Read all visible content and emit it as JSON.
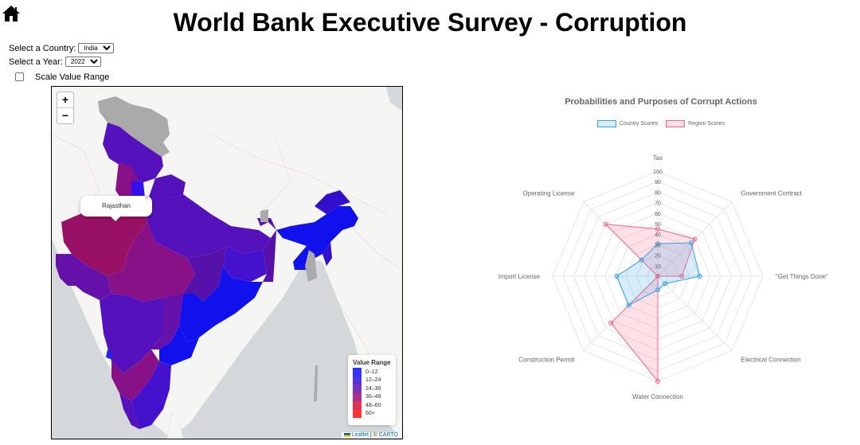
{
  "header": {
    "title": "World Bank Executive Survey - Corruption",
    "home_icon": "home-icon"
  },
  "controls": {
    "country_label": "Select a Country:",
    "country_value": "India",
    "year_label": "Select a Year:",
    "year_value": "2022",
    "scale_label": "Scale Value Range",
    "scale_checked": false
  },
  "map": {
    "zoom_in": "+",
    "zoom_out": "−",
    "popup": {
      "text": "Rajasthan",
      "close": "×"
    },
    "legend": {
      "title": "Value Range",
      "items": [
        {
          "label": "0–12",
          "color": "#3333ff"
        },
        {
          "label": "12–24",
          "color": "#5533dd"
        },
        {
          "label": "24–36",
          "color": "#7733bb"
        },
        {
          "label": "36–48",
          "color": "#aa2f88"
        },
        {
          "label": "48–60",
          "color": "#dd3355"
        },
        {
          "label": "60+",
          "color": "#ff3333"
        }
      ]
    },
    "attribution": {
      "leaflet": "Leaflet",
      "sep": " | © ",
      "carto": "CARTO"
    }
  },
  "chart_data": {
    "type": "radar",
    "title": "Probabilities and Purposes of Corrupt Actions",
    "axes": [
      "Tax",
      "Government Contract",
      "\"Get Things Done\"",
      "Electrical Connection",
      "Water Connection",
      "Construction Permit",
      "Import License",
      "Operating License"
    ],
    "ticks": [
      10,
      20,
      30,
      40,
      50,
      60,
      70,
      80,
      90,
      100
    ],
    "range": [
      0,
      100
    ],
    "legend_position": "top",
    "series": [
      {
        "name": "Country Scores",
        "color": "#36a2eb",
        "fill": "rgba(54,162,235,0.2)",
        "values": [
          31,
          45,
          40,
          10,
          13,
          39,
          39,
          22
        ]
      },
      {
        "name": "Region Scores",
        "color": "#ff6384",
        "fill": "rgba(255,99,132,0.2)",
        "values": [
          45,
          50,
          23,
          0,
          100,
          63,
          0,
          70
        ]
      }
    ]
  }
}
